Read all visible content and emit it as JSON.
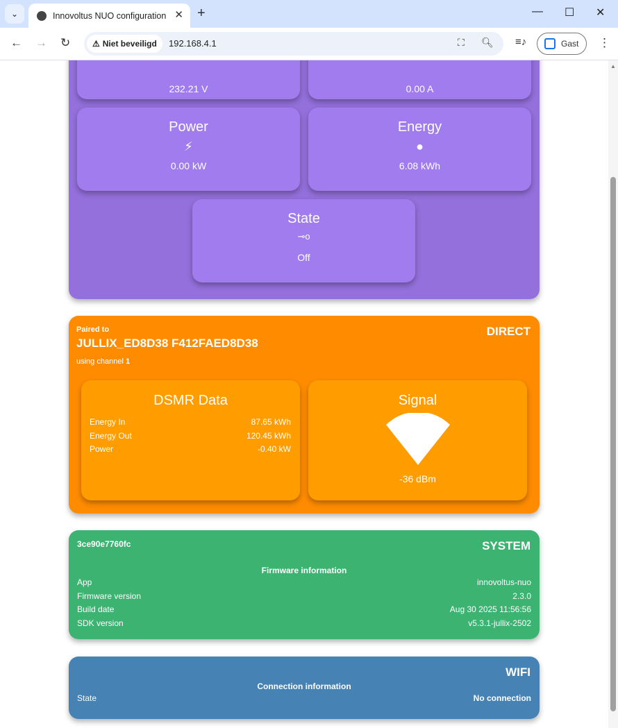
{
  "browser": {
    "tab_title": "Innovoltus NUO configuration",
    "security_label": "Niet beveiligd",
    "url": "192.168.4.1",
    "profile_label": "Gast"
  },
  "metrics": {
    "voltage": {
      "value": "232.21 V"
    },
    "current": {
      "value": "0.00 A"
    },
    "power": {
      "title": "Power",
      "icon": "lightning-icon",
      "value": "0.00 kW"
    },
    "energy": {
      "title": "Energy",
      "icon": "meter-icon",
      "value": "6.08 kWh"
    },
    "state": {
      "title": "State",
      "icon": "switch-icon",
      "value": "Off"
    }
  },
  "direct": {
    "badge": "DIRECT",
    "paired_label": "Paired to",
    "device": "JULLIX_ED8D38 F412FAED8D38",
    "channel_label": "using channel",
    "channel": "1",
    "dsmr": {
      "title": "DSMR Data",
      "rows": [
        {
          "label": "Energy In",
          "value": "87.65 kWh"
        },
        {
          "label": "Energy Out",
          "value": "120.45 kWh"
        },
        {
          "label": "Power",
          "value": "-0.40 kW"
        }
      ]
    },
    "signal": {
      "title": "Signal",
      "value": "-36 dBm",
      "icon": "signal-wedge-icon"
    }
  },
  "system": {
    "badge": "SYSTEM",
    "id": "3ce90e7760fc",
    "section": "Firmware information",
    "rows": [
      {
        "label": "App",
        "value": "innovoltus-nuo"
      },
      {
        "label": "Firmware version",
        "value": "2.3.0"
      },
      {
        "label": "Build date",
        "value": "Aug 30 2025 11:56:56"
      },
      {
        "label": "SDK version",
        "value": "v5.3.1-jullix-2502"
      }
    ]
  },
  "wifi": {
    "badge": "WIFI",
    "section": "Connection information",
    "rows": [
      {
        "label": "State",
        "value": "No connection"
      }
    ]
  },
  "colors": {
    "purple": "#9370db",
    "orange": "#ff8c00",
    "green": "#3cb371",
    "blue": "#4682b4"
  }
}
